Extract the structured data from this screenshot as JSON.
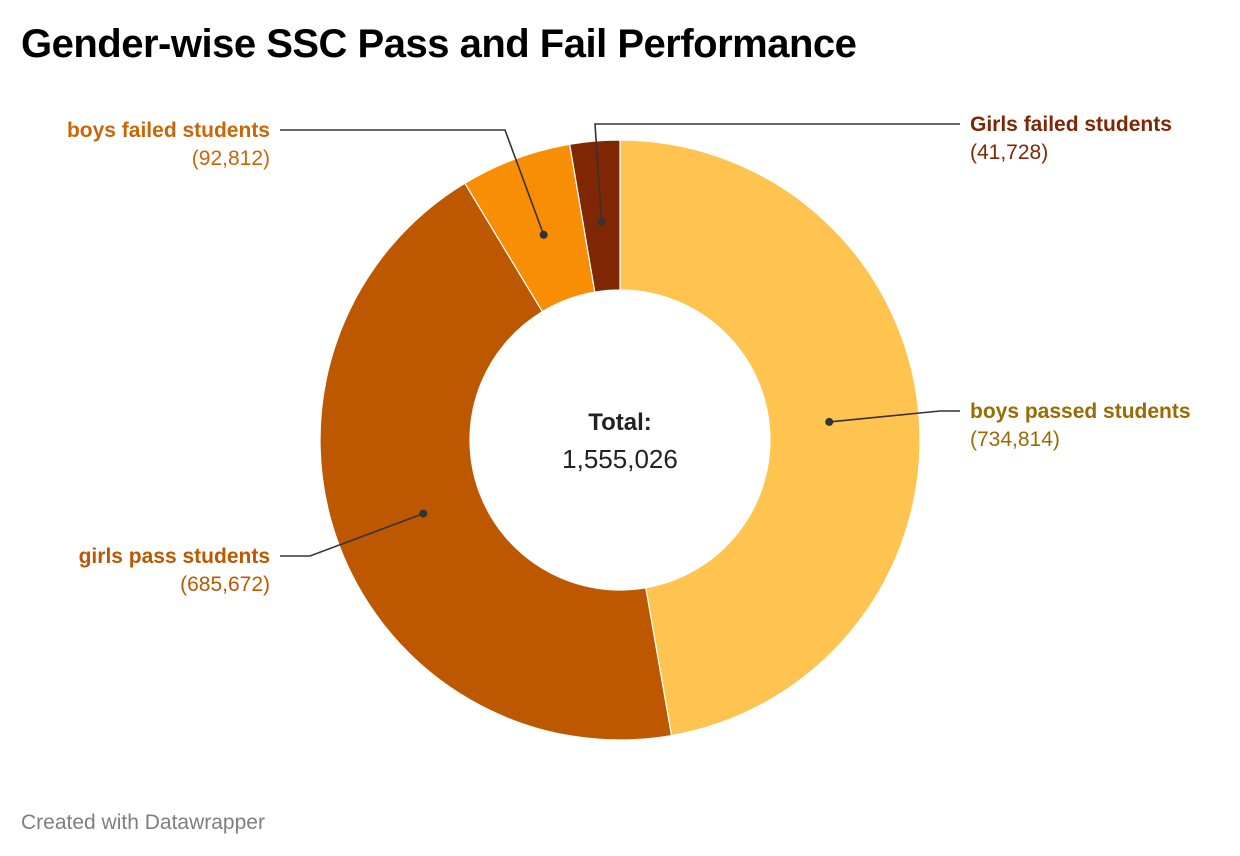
{
  "title": "Gender-wise SSC Pass and Fail Performance",
  "footer": "Created with Datawrapper",
  "chart_data": {
    "type": "pie",
    "variant": "donut",
    "title": "Gender-wise SSC Pass and Fail Performance",
    "center_label": {
      "heading": "Total:",
      "value": "1,555,026"
    },
    "slices": [
      {
        "label": "boys passed students",
        "value": 734814,
        "value_text": "(734,814)",
        "color": "#fec44f",
        "label_color": "#9a6b00"
      },
      {
        "label": "girls pass students",
        "value": 685672,
        "value_text": "(685,672)",
        "color": "#bd5800",
        "label_color": "#bd5800"
      },
      {
        "label": "boys failed students",
        "value": 92812,
        "value_text": "(92,812)",
        "color": "#f88e04",
        "label_color": "#c9660a"
      },
      {
        "label": "Girls failed students",
        "value": 41728,
        "value_text": "(41,728)",
        "color": "#7f2704",
        "label_color": "#7f2704"
      }
    ]
  }
}
